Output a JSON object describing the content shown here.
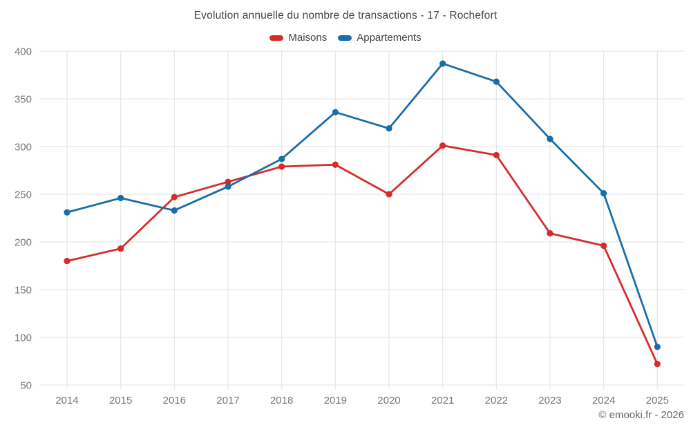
{
  "chart_data": {
    "type": "line",
    "title": "Evolution annuelle du nombre de transactions - 17 - Rochefort",
    "categories": [
      "2014",
      "2015",
      "2016",
      "2017",
      "2018",
      "2019",
      "2020",
      "2021",
      "2022",
      "2023",
      "2024",
      "2025"
    ],
    "series": [
      {
        "name": "Maisons",
        "color": "#d62b2b",
        "values": [
          180,
          193,
          247,
          263,
          279,
          281,
          250,
          301,
          291,
          209,
          196,
          72
        ]
      },
      {
        "name": "Appartements",
        "color": "#1b6ca8",
        "values": [
          231,
          246,
          233,
          258,
          287,
          336,
          319,
          387,
          368,
          308,
          251,
          90
        ]
      }
    ],
    "xlabel": "",
    "ylabel": "",
    "ylim": [
      50,
      400
    ],
    "ytick_step": 50,
    "yticks": [
      50,
      100,
      150,
      200,
      250,
      300,
      350,
      400
    ],
    "grid": true,
    "legend_position": "top"
  },
  "footer": {
    "copyright": "© emooki.fr - 2026"
  },
  "colors": {
    "grid": "#e6e6e6",
    "tick_label": "#757575",
    "title_text": "#444444",
    "background": "#ffffff"
  }
}
